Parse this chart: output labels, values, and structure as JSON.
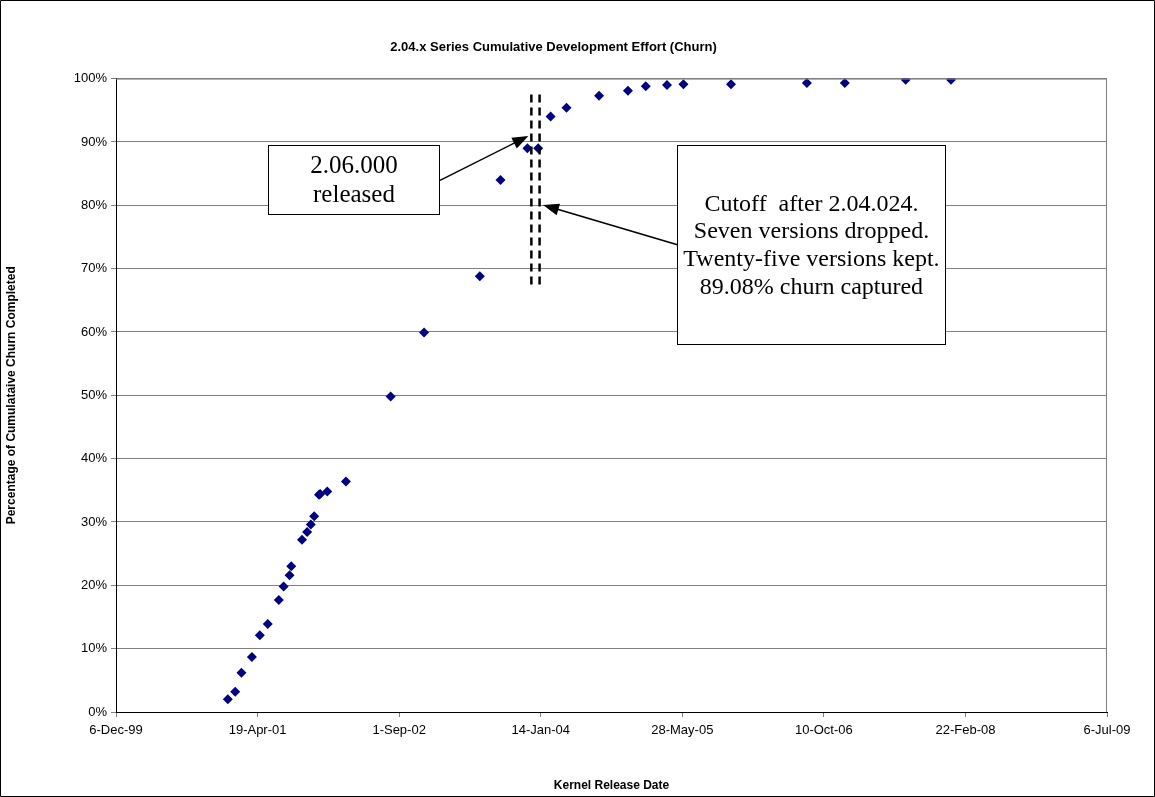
{
  "chart_data": {
    "type": "scatter",
    "title": "2.04.x Series Cumulative Development Effort (Churn)",
    "xlabel": "Kernel Release Date",
    "ylabel": "Percentage of Cumulataive Churn Completed",
    "x": [
      "2001-01-04",
      "2001-01-30",
      "2001-02-21",
      "2001-03-30",
      "2001-04-27",
      "2001-05-25",
      "2001-07-03",
      "2001-07-20",
      "2001-08-10",
      "2001-08-16",
      "2001-09-23",
      "2001-10-11",
      "2001-10-24",
      "2001-11-05",
      "2001-11-22",
      "2001-11-26",
      "2001-12-21",
      "2002-02-25",
      "2002-08-02",
      "2002-11-28",
      "2003-06-13",
      "2003-08-25",
      "2003-11-28",
      "2004-01-05",
      "2004-02-18",
      "2004-04-14",
      "2004-08-07",
      "2004-11-17",
      "2005-01-19",
      "2005-04-04",
      "2005-06-01",
      "2005-11-16",
      "2006-08-11",
      "2006-12-23",
      "2007-07-26",
      "2008-01-02"
    ],
    "series": [
      {
        "color": "#000080",
        "values": [
          2.0,
          3.2,
          6.2,
          8.7,
          12.1,
          13.9,
          17.7,
          19.8,
          21.6,
          23.0,
          27.2,
          28.4,
          29.6,
          30.9,
          34.3,
          34.4,
          34.8,
          36.4,
          49.8,
          59.9,
          68.8,
          84.0,
          89.0,
          89.0,
          94.0,
          95.4,
          97.3,
          98.1,
          98.8,
          99.0,
          99.1,
          99.1,
          99.3,
          99.3,
          99.8,
          99.8
        ]
      }
    ],
    "marker": "diamond",
    "grid": "y",
    "legend": false,
    "xlim": [
      "1999-12-06",
      "2009-07-06"
    ],
    "xticks": [
      {
        "value": "1999-12-06",
        "label": "6-Dec-99"
      },
      {
        "value": "2001-04-19",
        "label": "19-Apr-01"
      },
      {
        "value": "2002-09-01",
        "label": "1-Sep-02"
      },
      {
        "value": "2004-01-14",
        "label": "14-Jan-04"
      },
      {
        "value": "2005-05-28",
        "label": "28-May-05"
      },
      {
        "value": "2006-10-10",
        "label": "10-Oct-06"
      },
      {
        "value": "2008-02-22",
        "label": "22-Feb-08"
      },
      {
        "value": "2009-07-06",
        "label": "6-Jul-09"
      }
    ],
    "ylim": [
      0,
      100
    ],
    "yticks": [
      {
        "value": 0,
        "label": "0%"
      },
      {
        "value": 10,
        "label": "10%"
      },
      {
        "value": 20,
        "label": "20%"
      },
      {
        "value": 30,
        "label": "30%"
      },
      {
        "value": 40,
        "label": "40%"
      },
      {
        "value": 50,
        "label": "50%"
      },
      {
        "value": 60,
        "label": "60%"
      },
      {
        "value": 70,
        "label": "70%"
      },
      {
        "value": 80,
        "label": "80%"
      },
      {
        "value": 90,
        "label": "90%"
      },
      {
        "value": 100,
        "label": "100%"
      }
    ],
    "ref_lines": [
      {
        "axis": "x",
        "value": "2003-12-12",
        "line_style": "dashed",
        "color": "#000000"
      },
      {
        "axis": "x",
        "value": "2004-01-10",
        "line_style": "dashed",
        "color": "#000000"
      }
    ],
    "annotations": [
      "2.06.000\nreleased",
      "Cutoff  after 2.04.024.\nSeven versions dropped.\nTwenty-five versions kept.\n89.08% churn captured"
    ]
  }
}
